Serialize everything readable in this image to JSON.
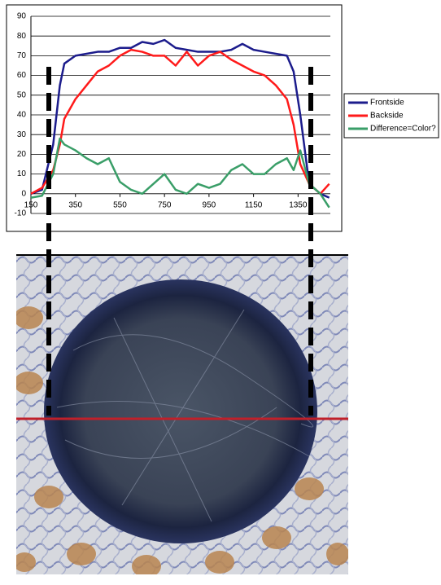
{
  "chart_data": {
    "type": "line",
    "x": [
      150,
      200,
      250,
      280,
      300,
      350,
      400,
      450,
      500,
      550,
      600,
      650,
      700,
      750,
      800,
      850,
      900,
      950,
      1000,
      1050,
      1100,
      1150,
      1200,
      1250,
      1300,
      1330,
      1360,
      1400,
      1450,
      1490
    ],
    "series": [
      {
        "name": "Frontside",
        "color": "#1c1c8c",
        "values": [
          0,
          2,
          25,
          55,
          66,
          70,
          71,
          72,
          72,
          74,
          74,
          77,
          76,
          78,
          74,
          73,
          72,
          72,
          72,
          73,
          76,
          73,
          72,
          71,
          70,
          62,
          40,
          5,
          0,
          -2
        ]
      },
      {
        "name": "Backside",
        "color": "#ff1a1a",
        "values": [
          0,
          3,
          12,
          25,
          38,
          48,
          55,
          62,
          65,
          70,
          73,
          72,
          70,
          70,
          65,
          72,
          65,
          70,
          72,
          68,
          65,
          62,
          60,
          55,
          48,
          35,
          15,
          5,
          0,
          5
        ]
      },
      {
        "name": "Difference=Color?",
        "color": "#3a9e68",
        "values": [
          -2,
          -1,
          10,
          28,
          25,
          22,
          18,
          15,
          18,
          6,
          2,
          0,
          5,
          10,
          2,
          0,
          5,
          3,
          5,
          12,
          15,
          10,
          10,
          15,
          18,
          12,
          22,
          5,
          0,
          -7
        ]
      }
    ],
    "xlim": [
      150,
      1495
    ],
    "xticks": [
      150,
      350,
      550,
      750,
      950,
      1150,
      1350
    ],
    "ylim": [
      -10,
      90
    ],
    "yticks": [
      -10,
      0,
      10,
      20,
      30,
      40,
      50,
      60,
      70,
      80,
      90
    ],
    "grid": true
  }
}
